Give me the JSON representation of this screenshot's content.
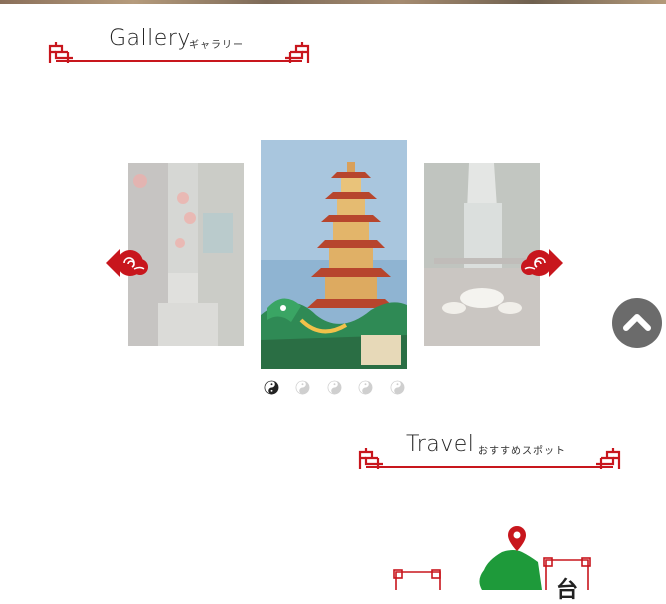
{
  "gallery": {
    "title": "Gallery",
    "subtitle": "ギャラリー",
    "slides": [
      {
        "name": "lantern-street-photo"
      },
      {
        "name": "dragon-tiger-pagoda-photo"
      },
      {
        "name": "mountain-tea-terrace-photo"
      }
    ],
    "active_index": 1,
    "dot_count": 5,
    "active_dot": 0
  },
  "travel": {
    "title": "Travel",
    "subtitle": "おすすめスポット"
  },
  "map": {
    "label": "台"
  },
  "colors": {
    "accent": "#c8161d",
    "map_green": "#1e9a3a",
    "to_top": "#6b6b6b"
  },
  "icons": {
    "prev": "cloud-arrow-left-icon",
    "next": "cloud-arrow-right-icon",
    "dot": "yin-yang-icon",
    "to_top": "chevron-up-icon",
    "pin": "map-pin-icon"
  }
}
